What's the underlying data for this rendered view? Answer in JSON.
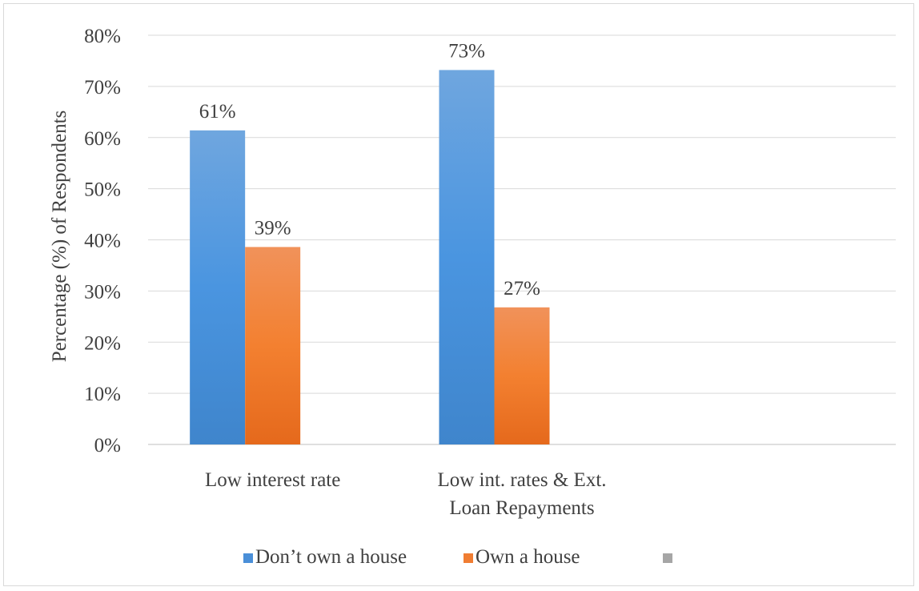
{
  "chart_data": {
    "type": "bar",
    "categories": [
      [
        "Low interest rate"
      ],
      [
        "Low int. rates & Ext.",
        "Loan Repayments"
      ],
      [
        ""
      ]
    ],
    "series": [
      {
        "name": "Don’t own a house",
        "values": [
          61.4,
          73.2,
          null
        ],
        "labels": [
          "61%",
          "73%",
          ""
        ],
        "color": "#4a8fd8"
      },
      {
        "name": "Own a house",
        "values": [
          38.6,
          26.8,
          null
        ],
        "labels": [
          "39%",
          "27%",
          ""
        ],
        "color": "#f07d32"
      },
      {
        "name": "",
        "values": [
          null,
          null,
          null
        ],
        "labels": [
          "",
          "",
          ""
        ],
        "color": "#a6a6a6"
      }
    ],
    "title": "",
    "xlabel": "",
    "ylabel": "Percentage (%) of Respondents",
    "ylim": [
      0,
      80
    ],
    "yticks": [
      "0%",
      "10%",
      "20%",
      "30%",
      "40%",
      "50%",
      "60%",
      "70%",
      "80%"
    ],
    "grid": true,
    "legend_position": "bottom"
  }
}
